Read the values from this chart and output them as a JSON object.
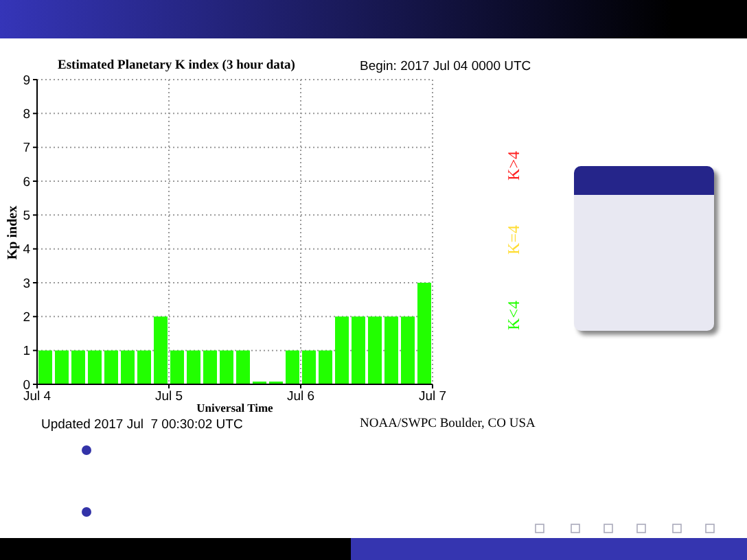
{
  "chart_data": {
    "type": "bar",
    "title": "Estimated Planetary K index (3 hour data)",
    "xlabel": "Universal Time",
    "ylabel": "Kp index",
    "annotations": [
      "Begin:  2017 Jul 04 0000 UTC",
      "Updated 2017 Jul  7 00:30:02 UTC",
      "NOAA/SWPC Boulder, CO USA"
    ],
    "x": [
      "2017-07-04T01:30",
      "2017-07-04T04:30",
      "2017-07-04T07:30",
      "2017-07-04T10:30",
      "2017-07-04T13:30",
      "2017-07-04T16:30",
      "2017-07-04T19:30",
      "2017-07-04T22:30",
      "2017-07-05T01:30",
      "2017-07-05T04:30",
      "2017-07-05T07:30",
      "2017-07-05T10:30",
      "2017-07-05T13:30",
      "2017-07-05T16:30",
      "2017-07-05T19:30",
      "2017-07-05T22:30",
      "2017-07-06T01:30",
      "2017-07-06T04:30",
      "2017-07-06T07:30",
      "2017-07-06T10:30",
      "2017-07-06T13:30",
      "2017-07-06T16:30",
      "2017-07-06T19:30",
      "2017-07-06T22:30"
    ],
    "series": [
      {
        "name": "K<4",
        "color": "#22ff00",
        "values": [
          1,
          1,
          1,
          1,
          1,
          1,
          1,
          2,
          1,
          1,
          1,
          1,
          1,
          0,
          0,
          1,
          1,
          1,
          2,
          2,
          2,
          2,
          2,
          3
        ]
      },
      {
        "name": "K=4",
        "color": "#ffdd33",
        "values": [
          null,
          null,
          null,
          null,
          null,
          null,
          null,
          null,
          null,
          null,
          null,
          null,
          null,
          null,
          null,
          null,
          null,
          null,
          null,
          null,
          null,
          null,
          null,
          null
        ]
      },
      {
        "name": "K>4",
        "color": "#ff2222",
        "values": [
          null,
          null,
          null,
          null,
          null,
          null,
          null,
          null,
          null,
          null,
          null,
          null,
          null,
          null,
          null,
          null,
          null,
          null,
          null,
          null,
          null,
          null,
          null,
          null
        ]
      }
    ],
    "xlim": [
      "2017-07-04",
      "2017-07-07"
    ],
    "xticks": [
      {
        "value": "2017-07-04",
        "label": "Jul 4"
      },
      {
        "value": "2017-07-05",
        "label": "Jul 5"
      },
      {
        "value": "2017-07-06",
        "label": "Jul 6"
      },
      {
        "value": "2017-07-07",
        "label": "Jul 7"
      }
    ],
    "ylim": [
      0,
      9
    ],
    "yticks": [
      0,
      1,
      2,
      3,
      4,
      5,
      6,
      7,
      8,
      9
    ],
    "grid": true,
    "legend": "right"
  }
}
